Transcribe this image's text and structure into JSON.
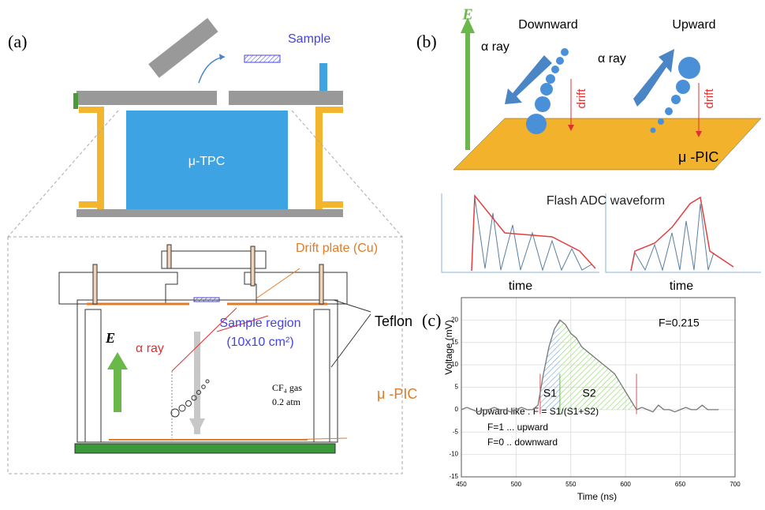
{
  "panel_a": {
    "label": "(a)",
    "sample": "Sample",
    "tpc": "μ-TPC",
    "drift_plate": "Drift plate (Cu)",
    "sample_region": [
      "Sample region",
      "(10x10 cm²)"
    ],
    "e_field": "E",
    "alpha": "α ray",
    "gas": [
      "CF₄ gas",
      "0.2 atm"
    ],
    "teflon": "Teflon",
    "upic": "μ -PIC"
  },
  "panel_b": {
    "label": "(b)",
    "e_field": "E",
    "downward": "Downward",
    "upward": "Upward",
    "alpha_left": "α ray",
    "alpha_right": "α ray",
    "drift_left": "drift",
    "drift_right": "drift",
    "upic": "μ -PIC",
    "waveform_title": "Flash ADC waveform",
    "time_left": "time",
    "time_right": "time"
  },
  "chart_data": {
    "type": "line",
    "panel_label": "(c)",
    "x_label": "Time (ns)",
    "y_label": "Voltage (mV)",
    "annotation": "F=0.215",
    "s1_label": "S1",
    "s2_label": "S2",
    "notes": [
      "Upward like : F = S1/(S1+S2)",
      "F=1 ... upward",
      "F=0 .. downward"
    ],
    "s1_range": [
      522,
      540
    ],
    "s2_range": [
      540,
      608
    ],
    "cut_lines": [
      522,
      540,
      610
    ],
    "x": [
      450,
      455,
      460,
      465,
      470,
      475,
      480,
      485,
      490,
      495,
      500,
      505,
      510,
      515,
      520,
      525,
      530,
      535,
      540,
      545,
      550,
      555,
      560,
      565,
      570,
      575,
      580,
      585,
      590,
      595,
      600,
      605,
      610,
      615,
      620,
      625,
      630,
      635,
      640,
      645,
      650,
      655,
      660,
      665,
      670,
      675,
      680,
      685
    ],
    "series": [
      {
        "color": "#777777",
        "values": [
          0,
          0.5,
          0,
          -0.5,
          0,
          0,
          0.5,
          0,
          0,
          -0.5,
          0,
          0.5,
          0,
          0,
          1,
          8,
          14,
          18,
          20,
          19,
          17,
          16,
          14,
          13,
          12,
          11,
          10,
          9,
          8,
          6,
          4,
          2,
          0,
          0.5,
          0,
          -0.5,
          1,
          0,
          0,
          -0.5,
          0,
          0.5,
          0,
          0,
          1,
          0,
          0,
          0
        ]
      }
    ],
    "xlim": [
      450,
      700
    ],
    "ylim": [
      -15,
      25
    ],
    "xticks": [
      450,
      500,
      550,
      600,
      650,
      700
    ],
    "yticks": [
      -15,
      -10,
      -5,
      0,
      5,
      10,
      15,
      20
    ],
    "grid": true
  }
}
